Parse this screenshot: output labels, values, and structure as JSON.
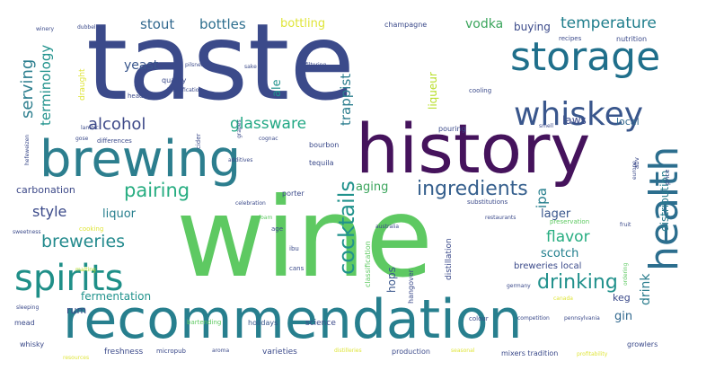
{
  "palette": {
    "indigo": "#3b4a8a",
    "purple": "#45135c",
    "teal": "#277f8e",
    "teal_dark": "#1f6f8b",
    "green": "#3ba55c",
    "green_light": "#5ec962",
    "lime": "#b8de29",
    "yellow": "#dfe53a",
    "blue": "#39568c"
  },
  "words": [
    "taste",
    "wine",
    "history",
    "recommendation",
    "brewing",
    "storage",
    "whiskey",
    "health",
    "spirits",
    "cocktails",
    "ingredients",
    "pairing",
    "drinking",
    "breweries",
    "temperature",
    "alcohol",
    "glassware",
    "stout",
    "bottles",
    "bottling",
    "vodka",
    "buying",
    "serving",
    "terminology",
    "yeast",
    "trappist",
    "ale",
    "laws",
    "local",
    "ipa",
    "liqueur",
    "aging",
    "style",
    "liquor",
    "lager",
    "flavor",
    "scotch",
    "carbonation",
    "distribution",
    "hops",
    "gin",
    "fermentation",
    "rum",
    "keg",
    "drink",
    "breweries local",
    "science",
    "holidays",
    "varieties",
    "freshness",
    "production",
    "mixers tradition",
    "growlers",
    "whisky",
    "mead",
    "bourbon",
    "tequila",
    "porter",
    "distillation",
    "classification",
    "hangover",
    "champagne",
    "nutrition",
    "recipes",
    "differences",
    "cider",
    "quality",
    "draught",
    "head",
    "cooling",
    "pouring",
    "colour",
    "micropub",
    "bartending",
    "cans",
    "age",
    "ibu",
    "cooking",
    "substitutions",
    "preservation",
    "price",
    "abv",
    "dubbel",
    "sake",
    "filtering",
    "pilsner",
    "lambic",
    "additives",
    "cognac",
    "gose",
    "europe",
    "restaurants",
    "australia",
    "foam",
    "germany",
    "ordering",
    "competition",
    "canada",
    "pennsylvania",
    "identification",
    "celebration",
    "hefeweizen",
    "aroma",
    "distilleries",
    "seasonal",
    "profitability",
    "malting",
    "sleeping",
    "resources",
    "winery",
    "grapes",
    "sweetness",
    "fruit",
    "smell"
  ]
}
